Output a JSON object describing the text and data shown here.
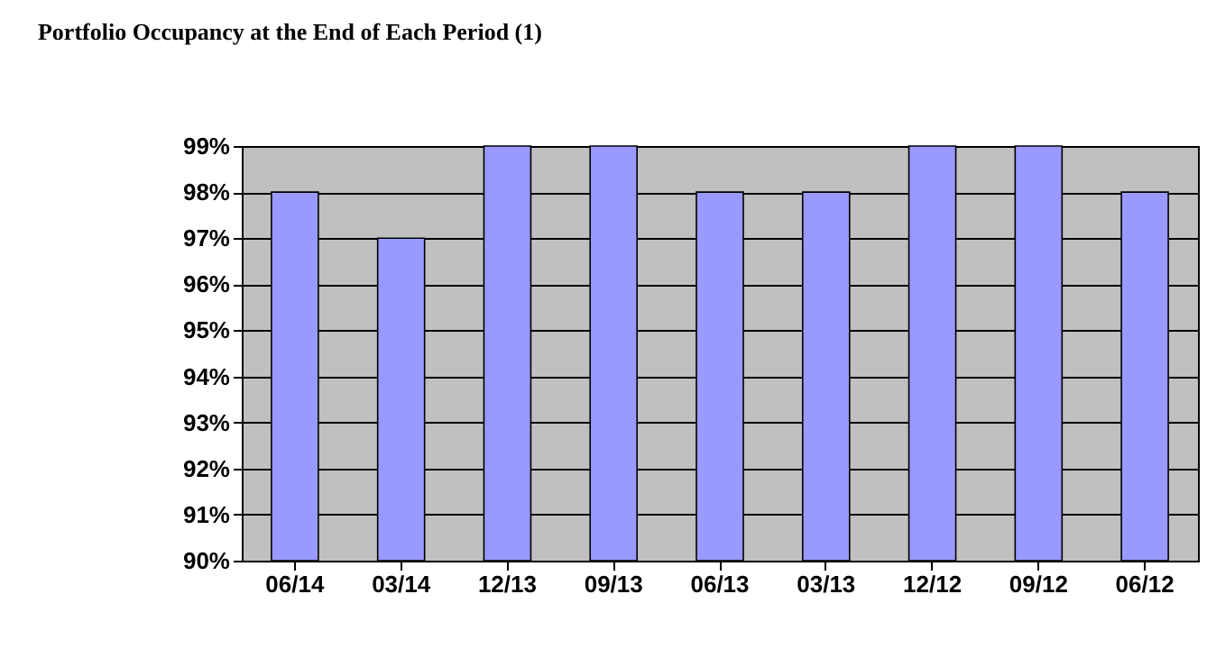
{
  "chart_data": {
    "type": "bar",
    "title": "Portfolio Occupancy at the End of Each Period (1)",
    "categories": [
      "06/14",
      "03/14",
      "12/13",
      "09/13",
      "06/13",
      "03/13",
      "12/12",
      "09/12",
      "06/12"
    ],
    "values": [
      98,
      97,
      99,
      99,
      98,
      98,
      99,
      99,
      98
    ],
    "color": "#9999ff",
    "ylim": [
      90,
      99
    ],
    "yticks": [
      {
        "value": 90,
        "label": "90%"
      },
      {
        "value": 91,
        "label": "91%"
      },
      {
        "value": 92,
        "label": "92%"
      },
      {
        "value": 93,
        "label": "93%"
      },
      {
        "value": 94,
        "label": "94%"
      },
      {
        "value": 95,
        "label": "95%"
      },
      {
        "value": 96,
        "label": "96%"
      },
      {
        "value": 97,
        "label": "97%"
      },
      {
        "value": 98,
        "label": "98%"
      },
      {
        "value": 99,
        "label": "99%"
      }
    ],
    "grid": "y"
  }
}
